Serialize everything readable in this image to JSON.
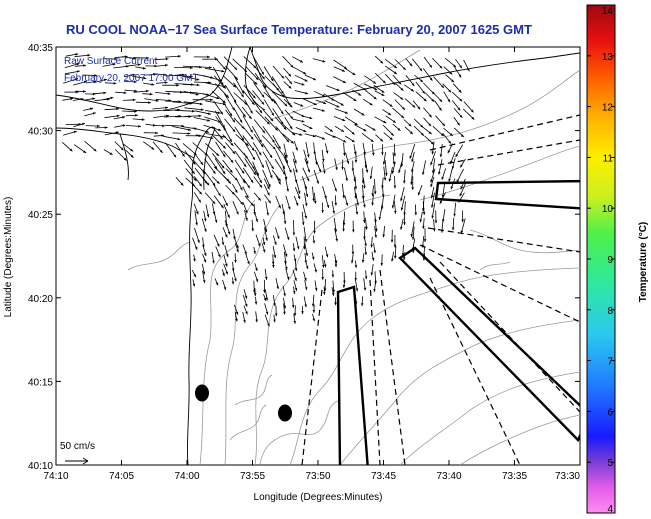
{
  "title": "RU COOL  NOAA−17  Sea Surface Temperature:  February 20, 2007 1625 GMT",
  "overlay": {
    "line1": "Raw Surface Current",
    "line2": "February 20, 2007 17:00 GMT"
  },
  "scale": {
    "label": "50 cm/s",
    "speed_cm_s": 50
  },
  "x_axis": {
    "label": "Longitude (Degrees:Minutes)",
    "ticks": [
      "74:10",
      "74:05",
      "74:00",
      "73:55",
      "73:50",
      "73:45",
      "73:40",
      "73:35",
      "73:30"
    ]
  },
  "y_axis": {
    "label": "Latitude (Degrees:Minutes)",
    "ticks": [
      "40:10",
      "40:15",
      "40:20",
      "40:25",
      "40:30",
      "40:35"
    ]
  },
  "colorbar": {
    "label": "Temperature (°C)",
    "min": 4,
    "max": 14,
    "ticks": [
      "4",
      "5",
      "6",
      "7",
      "8",
      "9",
      "10",
      "11",
      "12",
      "13",
      "14"
    ]
  },
  "colors": {
    "title": "#1a2db0",
    "land_line": "#000000",
    "bathymetry": "#9a9a9a",
    "vectors": "#000000"
  }
}
